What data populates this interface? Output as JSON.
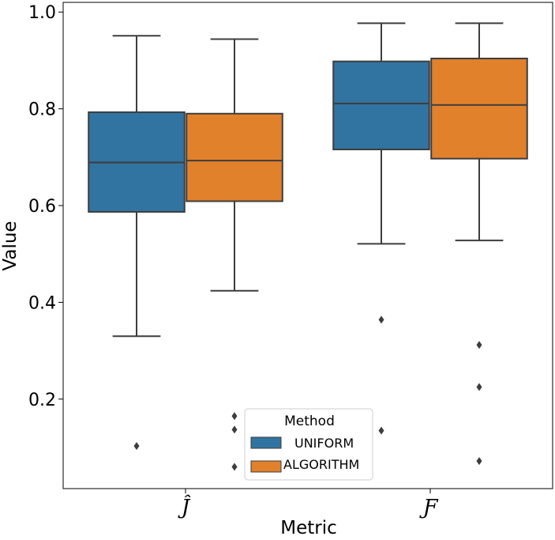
{
  "chart_data": {
    "type": "box",
    "xlabel": "Metric",
    "ylabel": "Value",
    "ylim": [
      0.015,
      1.02
    ],
    "yticks": [
      0.2,
      0.4,
      0.6,
      0.8,
      1.0
    ],
    "ytick_labels": [
      "0.2",
      "0.4",
      "0.6",
      "0.8",
      "1.0"
    ],
    "categories": [
      "Ĵ",
      "Ƒ"
    ],
    "legend": {
      "title": "Method",
      "position": "bottom-center"
    },
    "series": [
      {
        "name": "UNIFORM",
        "color": "#3274a1",
        "boxes": [
          {
            "whisker_low": 0.33,
            "q1": 0.587,
            "median": 0.689,
            "q3": 0.793,
            "whisker_high": 0.951,
            "outliers": [
              0.103
            ]
          },
          {
            "whisker_low": 0.521,
            "q1": 0.716,
            "median": 0.811,
            "q3": 0.898,
            "whisker_high": 0.977,
            "outliers": [
              0.364,
              0.135
            ]
          }
        ]
      },
      {
        "name": "ALGORITHM",
        "color": "#e1812c",
        "boxes": [
          {
            "whisker_low": 0.424,
            "q1": 0.609,
            "median": 0.693,
            "q3": 0.79,
            "whisker_high": 0.944,
            "outliers": [
              0.165,
              0.137,
              0.06
            ]
          },
          {
            "whisker_low": 0.528,
            "q1": 0.697,
            "median": 0.808,
            "q3": 0.904,
            "whisker_high": 0.977,
            "outliers": [
              0.312,
              0.225,
              0.072
            ]
          }
        ]
      }
    ]
  }
}
